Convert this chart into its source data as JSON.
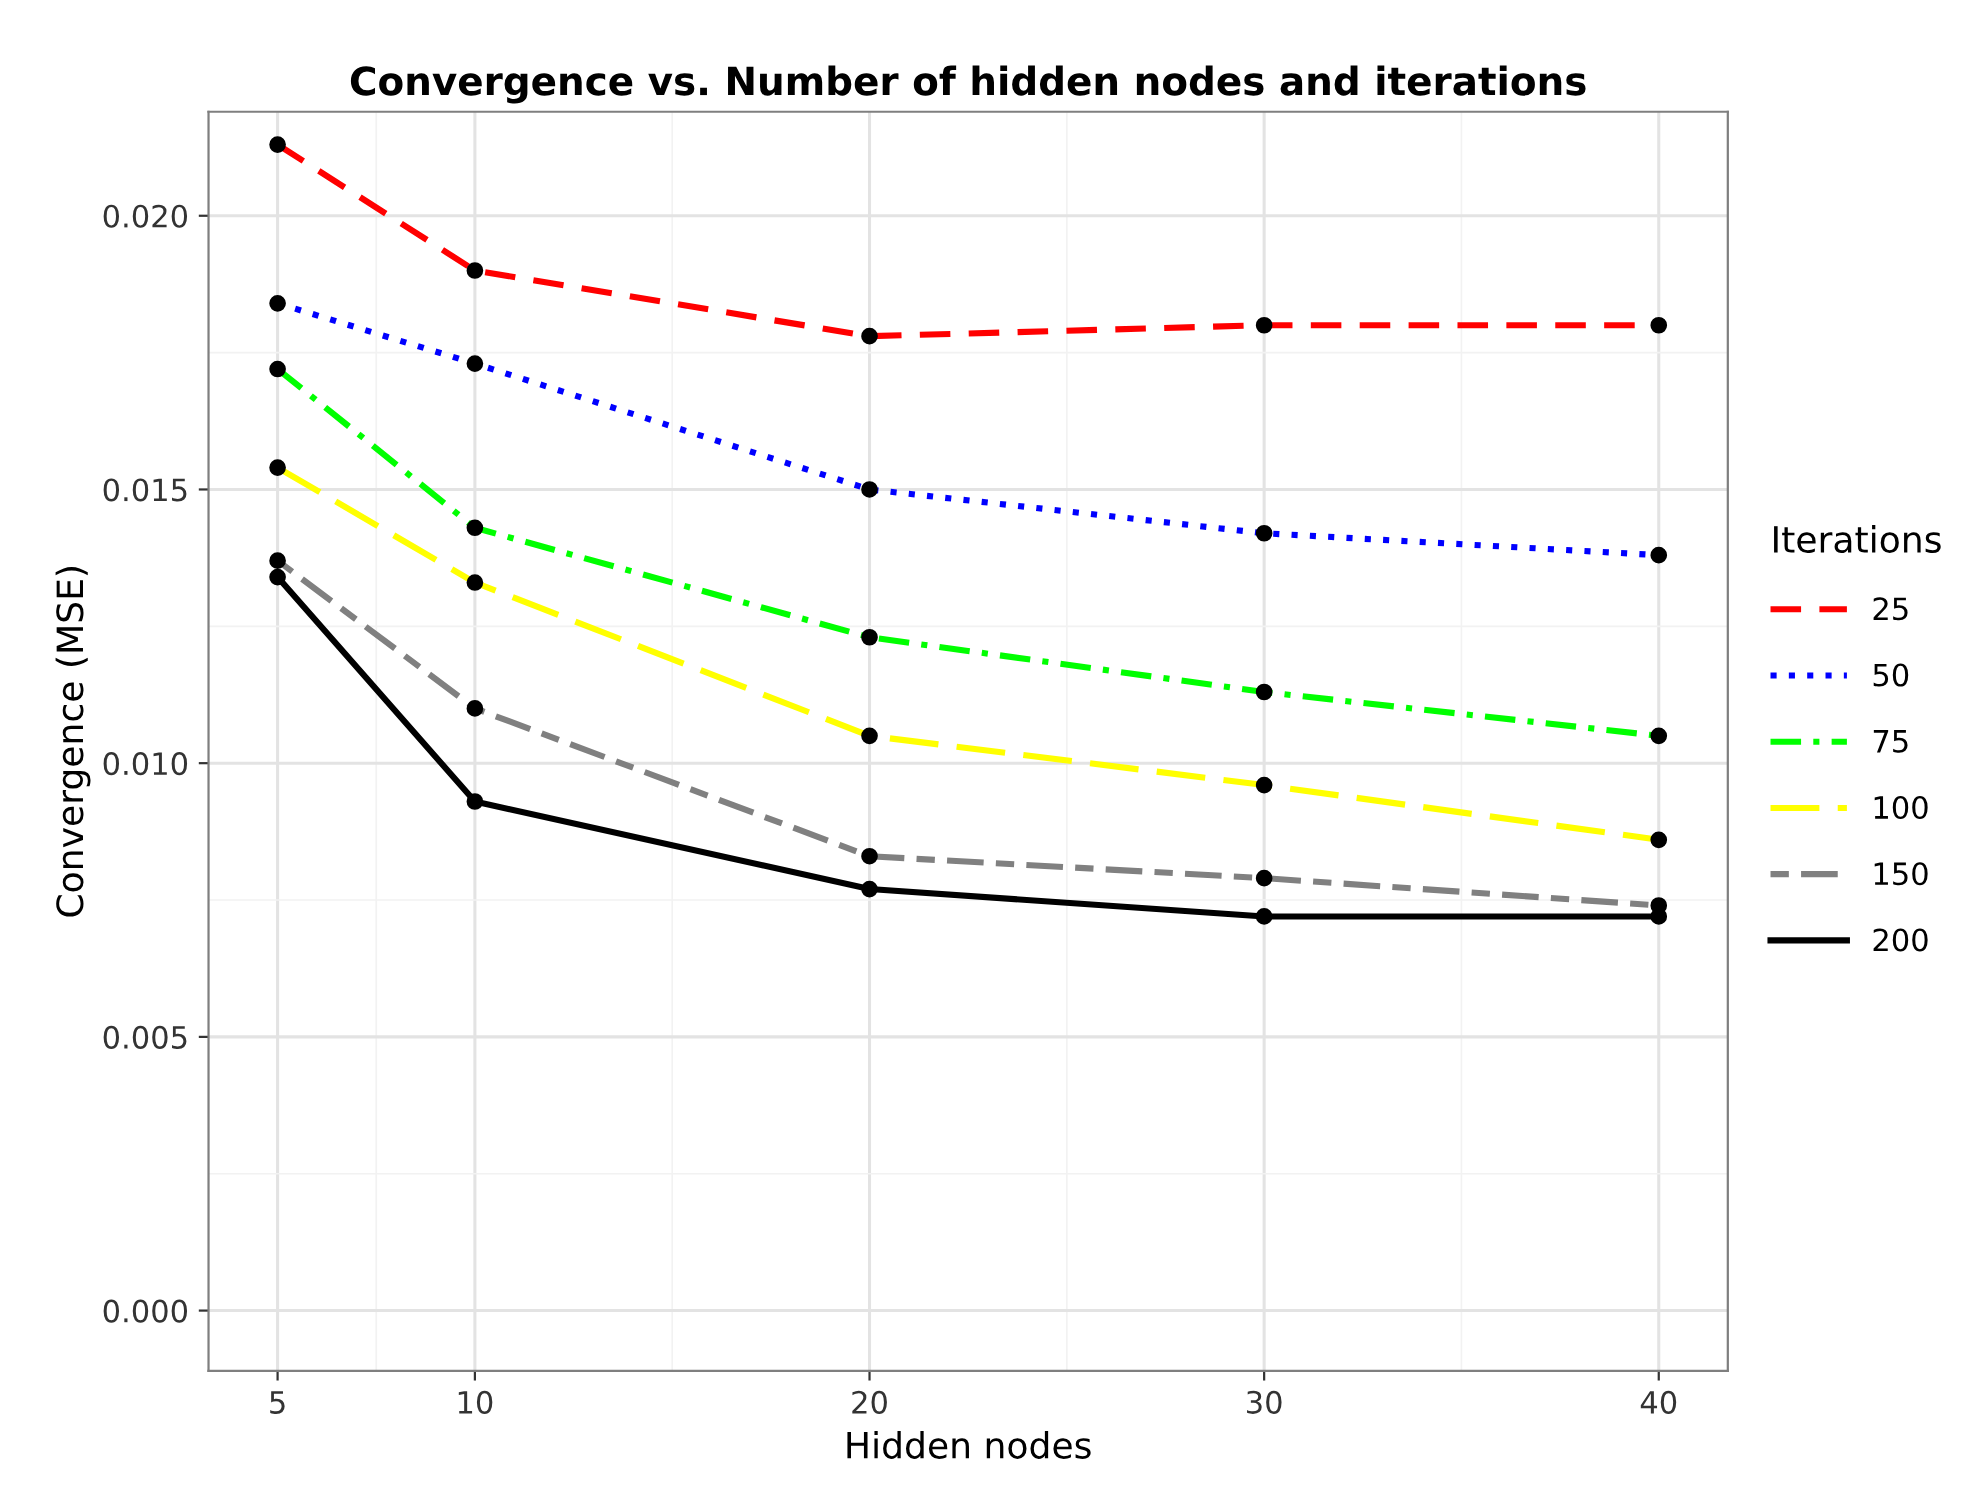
{
  "chart_data": {
    "type": "line",
    "title": "Convergence vs. Number of hidden nodes and iterations",
    "xlabel": "Hidden nodes",
    "ylabel": "Convergence (MSE)",
    "legend_title": "Iterations",
    "legend": "right",
    "grid": true,
    "marker": "circle",
    "x": [
      5,
      10,
      20,
      30,
      40
    ],
    "xlim": [
      3.25,
      41.75
    ],
    "xticks": [
      5,
      10,
      20,
      30,
      40
    ],
    "ylim": [
      -0.0011,
      0.0219
    ],
    "yticks": [
      {
        "value": 0,
        "label": "0.000"
      },
      {
        "value": 0.005,
        "label": "0.005"
      },
      {
        "value": 0.01,
        "label": "0.010"
      },
      {
        "value": 0.015,
        "label": "0.015"
      },
      {
        "value": 0.02,
        "label": "0.020"
      }
    ],
    "series": [
      {
        "name": "25",
        "color": "#ff0000",
        "line_style": "dashed",
        "values": [
          0.0213,
          0.019,
          0.0178,
          0.018,
          0.018
        ]
      },
      {
        "name": "50",
        "color": "#0000ff",
        "line_style": "dotted",
        "values": [
          0.0184,
          0.0173,
          0.015,
          0.0142,
          0.0138
        ]
      },
      {
        "name": "75",
        "color": "#00ff00",
        "line_style": "dashdot",
        "values": [
          0.0172,
          0.0143,
          0.0123,
          0.0113,
          0.0105
        ]
      },
      {
        "name": "100",
        "color": "#ffff00",
        "line_style": "longdash",
        "values": [
          0.0154,
          0.0133,
          0.0105,
          0.0096,
          0.0086
        ]
      },
      {
        "name": "150",
        "color": "#808080",
        "line_style": "twodash",
        "values": [
          0.0137,
          0.011,
          0.0083,
          0.0079,
          0.0074
        ]
      },
      {
        "name": "200",
        "color": "#000000",
        "line_style": "solid",
        "values": [
          0.0134,
          0.0093,
          0.0077,
          0.0072,
          0.0072
        ]
      }
    ]
  }
}
